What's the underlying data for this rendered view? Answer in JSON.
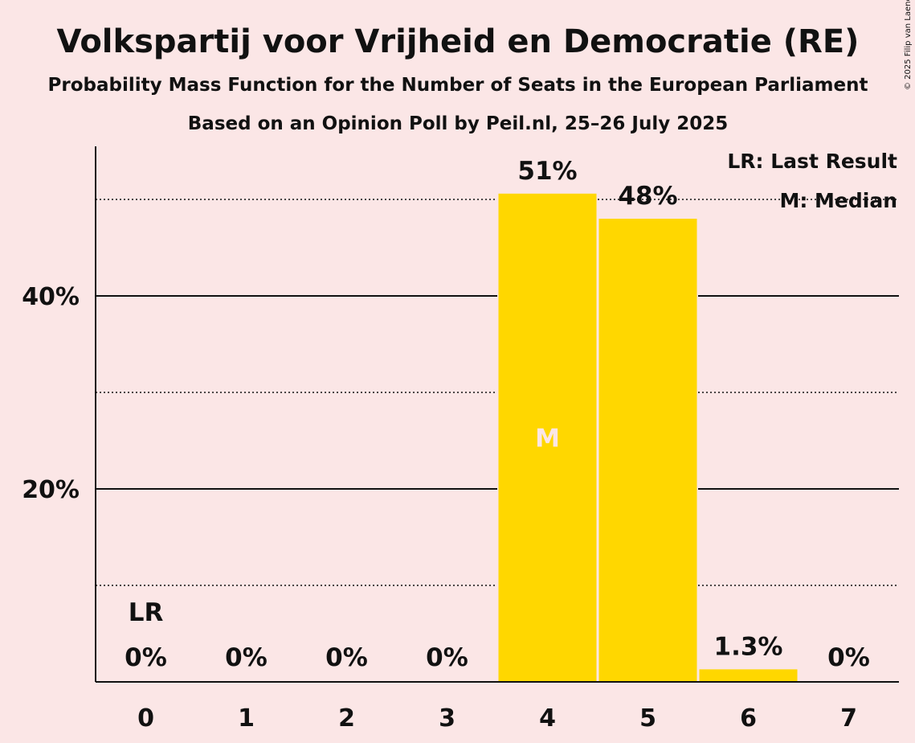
{
  "chart_data": {
    "type": "bar",
    "title": "Volkspartij voor Vrijheid en Democratie (RE)",
    "subtitle": "Probability Mass Function for the Number of Seats in the European Parliament",
    "subtitle2": "Based on an Opinion Poll by Peil.nl, 25–26 July 2025",
    "copyright": "© 2025 Filip van Laenen",
    "categories": [
      "0",
      "1",
      "2",
      "3",
      "4",
      "5",
      "6",
      "7"
    ],
    "values": [
      0,
      0,
      0,
      0,
      50.6,
      48.0,
      1.3,
      0
    ],
    "value_labels": [
      "0%",
      "0%",
      "0%",
      "0%",
      "51%",
      "48%",
      "1.3%",
      "0%"
    ],
    "ylim": [
      0,
      55
    ],
    "yticks": [
      20,
      40
    ],
    "ytick_labels": [
      "20%",
      "40%"
    ],
    "minor_gridlines": [
      10,
      30,
      50
    ],
    "last_result_index": 0,
    "last_result_label": "LR",
    "median_index": 4,
    "median_label": "M",
    "legend": [
      "LR: Last Result",
      "M: Median"
    ],
    "legend_position": "top-right",
    "colors": {
      "bar": "#ffd700",
      "background": "#fbe6e6",
      "axis": "#111111",
      "median_text": "#fbe6e6"
    }
  }
}
